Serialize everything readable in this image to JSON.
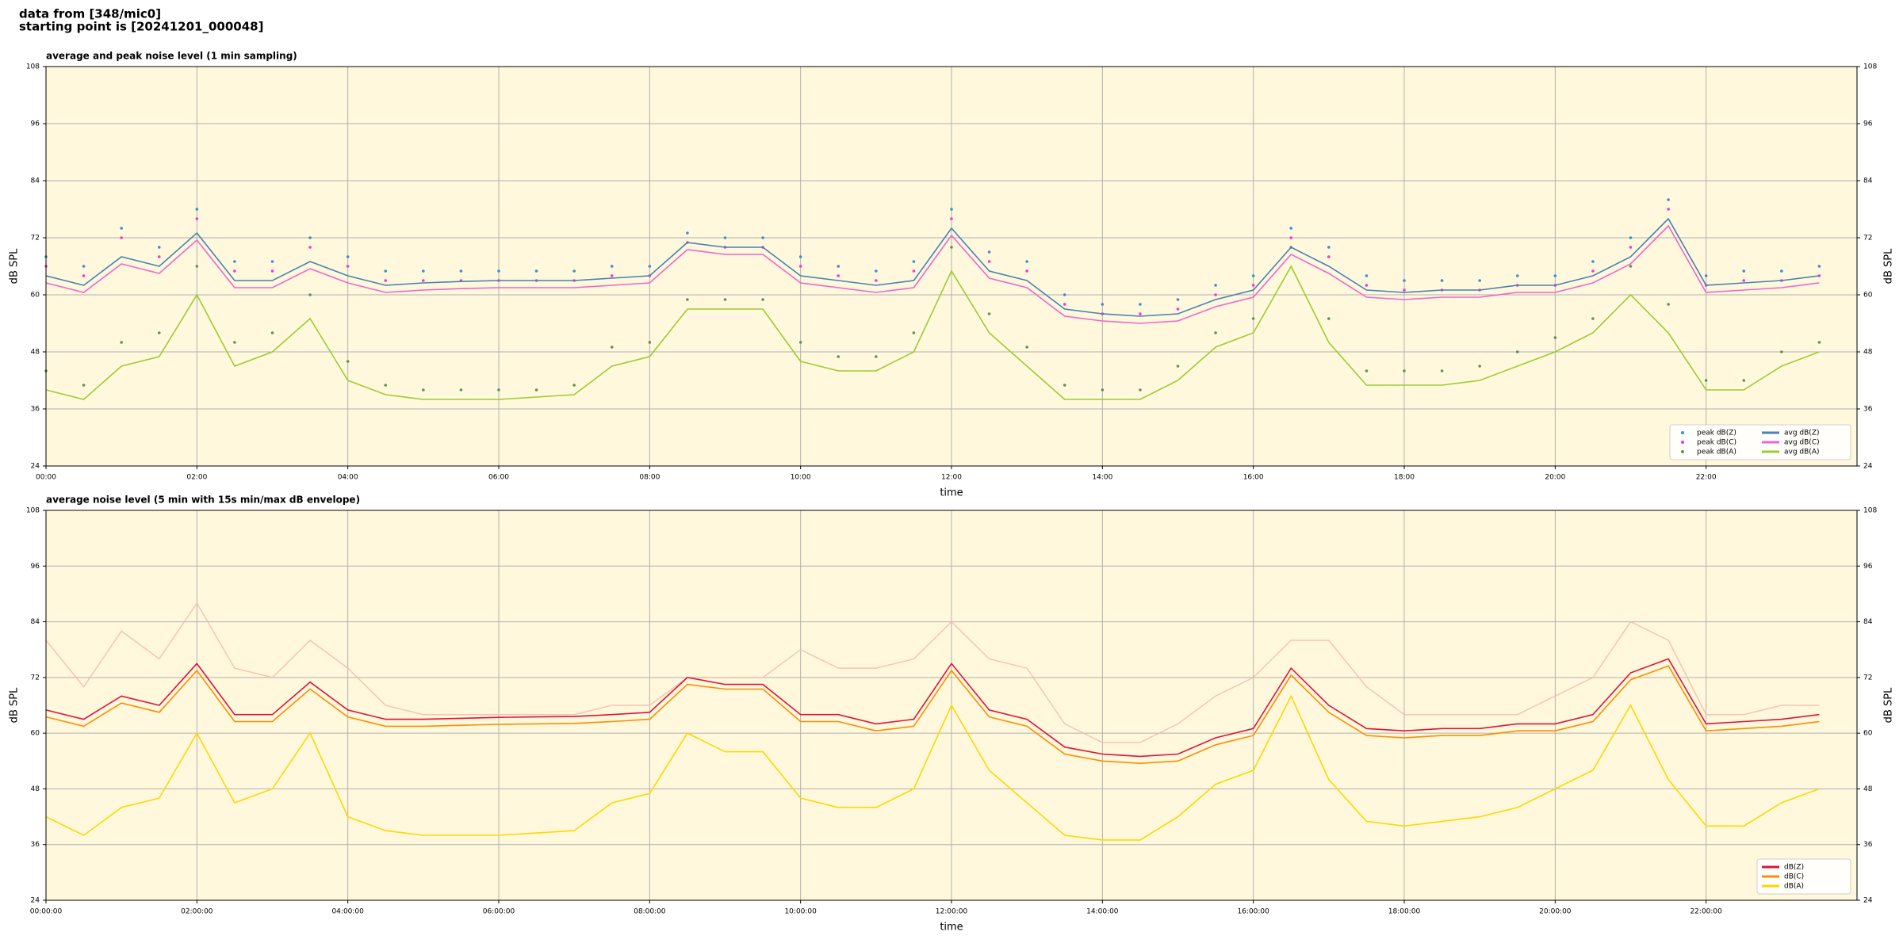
{
  "title": [
    "data from [348/mic0]",
    "starting point is [20241201_000048]"
  ],
  "chart_data": [
    {
      "type": "line",
      "title": "average and peak noise level (1 min sampling)",
      "xlabel": "time",
      "ylabel": "dB SPL",
      "xlim": [
        0,
        24
      ],
      "ylim": [
        24,
        108
      ],
      "yticks": [
        24,
        36,
        48,
        60,
        72,
        84,
        96,
        108
      ],
      "xticks": [
        {
          "value": 0,
          "label": "00:00"
        },
        {
          "value": 2,
          "label": "02:00"
        },
        {
          "value": 4,
          "label": "04:00"
        },
        {
          "value": 6,
          "label": "06:00"
        },
        {
          "value": 8,
          "label": "08:00"
        },
        {
          "value": 10,
          "label": "10:00"
        },
        {
          "value": 12,
          "label": "12:00"
        },
        {
          "value": 14,
          "label": "14:00"
        },
        {
          "value": 16,
          "label": "16:00"
        },
        {
          "value": 18,
          "label": "18:00"
        },
        {
          "value": 20,
          "label": "20:00"
        },
        {
          "value": 22,
          "label": "22:00"
        }
      ],
      "grid": true,
      "legend": "lower right",
      "background": "#fff8dc",
      "x": [
        0,
        0.5,
        1,
        1.5,
        2,
        2.5,
        3,
        3.5,
        4,
        4.5,
        5,
        5.5,
        6,
        6.5,
        7,
        7.5,
        8,
        8.5,
        9,
        9.5,
        10,
        10.5,
        11,
        11.5,
        12,
        12.5,
        13,
        13.5,
        14,
        14.5,
        15,
        15.5,
        16,
        16.5,
        17,
        17.5,
        18,
        18.5,
        19,
        19.5,
        20,
        20.5,
        21,
        21.5,
        22,
        22.5,
        23,
        23.5
      ],
      "series": [
        {
          "name": "peak dB(Z)",
          "style": "points",
          "color": "#3a8fd0",
          "values": [
            68,
            66,
            74,
            70,
            78,
            67,
            67,
            72,
            68,
            65,
            65,
            65,
            65,
            65,
            65,
            66,
            66,
            73,
            72,
            72,
            68,
            66,
            65,
            67,
            78,
            69,
            67,
            60,
            58,
            58,
            59,
            62,
            64,
            74,
            70,
            64,
            63,
            63,
            63,
            64,
            64,
            67,
            72,
            80,
            64,
            65,
            65,
            66
          ]
        },
        {
          "name": "peak dB(C)",
          "style": "points",
          "color": "#ff33cc",
          "values": [
            66,
            64,
            72,
            68,
            76,
            65,
            65,
            70,
            66,
            63,
            63,
            63,
            63,
            63,
            63,
            64,
            64,
            71,
            70,
            70,
            66,
            64,
            63,
            65,
            76,
            67,
            65,
            58,
            56,
            56,
            57,
            60,
            62,
            72,
            68,
            62,
            61,
            61,
            61,
            62,
            62,
            65,
            70,
            78,
            62,
            63,
            63,
            64
          ]
        },
        {
          "name": "peak dB(A)",
          "style": "points",
          "color": "#559955",
          "values": [
            44,
            41,
            50,
            52,
            66,
            50,
            52,
            60,
            46,
            41,
            40,
            40,
            40,
            40,
            41,
            49,
            50,
            59,
            59,
            59,
            50,
            47,
            47,
            52,
            70,
            56,
            49,
            41,
            40,
            40,
            45,
            52,
            55,
            70,
            55,
            44,
            44,
            44,
            45,
            48,
            51,
            55,
            66,
            58,
            42,
            42,
            48,
            50
          ]
        },
        {
          "name": "avg dB(Z)",
          "style": "line",
          "color": "#4682b4",
          "values": [
            64,
            62,
            68,
            66,
            73,
            63,
            63,
            67,
            64,
            62,
            62.5,
            62.8,
            63,
            63,
            63,
            63.5,
            64,
            71,
            70,
            70,
            64,
            63,
            62,
            63,
            74,
            65,
            63,
            57,
            56,
            55.5,
            56,
            59,
            61,
            70,
            66,
            61,
            60.5,
            61,
            61,
            62,
            62,
            64,
            68,
            76,
            62,
            62.5,
            63,
            64
          ]
        },
        {
          "name": "avg dB(C)",
          "style": "line",
          "color": "#ee66cc",
          "values": [
            62.5,
            60.5,
            66.5,
            64.5,
            71.5,
            61.5,
            61.5,
            65.5,
            62.5,
            60.5,
            61,
            61.3,
            61.5,
            61.5,
            61.5,
            62,
            62.5,
            69.5,
            68.5,
            68.5,
            62.5,
            61.5,
            60.5,
            61.5,
            72.5,
            63.5,
            61.5,
            55.5,
            54.5,
            54,
            54.5,
            57.5,
            59.5,
            68.5,
            64.5,
            59.5,
            59,
            59.5,
            59.5,
            60.5,
            60.5,
            62.5,
            66.5,
            74.5,
            60.5,
            61,
            61.5,
            62.5
          ]
        },
        {
          "name": "avg dB(A)",
          "style": "line",
          "color": "#9acd32",
          "values": [
            40,
            38,
            45,
            47,
            60,
            45,
            48,
            55,
            42,
            39,
            38,
            38,
            38,
            38.5,
            39,
            45,
            47,
            57,
            57,
            57,
            46,
            44,
            44,
            48,
            65,
            52,
            45,
            38,
            38,
            38,
            42,
            49,
            52,
            66,
            50,
            41,
            41,
            41,
            42,
            45,
            48,
            52,
            60,
            52,
            40,
            40,
            45,
            48
          ]
        }
      ]
    },
    {
      "type": "line",
      "title": "average noise level (5 min with 15s min/max dB envelope)",
      "xlabel": "time",
      "ylabel": "dB SPL",
      "xlim": [
        0,
        24
      ],
      "ylim": [
        24,
        108
      ],
      "yticks": [
        24,
        36,
        48,
        60,
        72,
        84,
        96,
        108
      ],
      "xticks": [
        {
          "value": 0,
          "label": "00:00:00"
        },
        {
          "value": 2,
          "label": "02:00:00"
        },
        {
          "value": 4,
          "label": "04:00:00"
        },
        {
          "value": 6,
          "label": "06:00:00"
        },
        {
          "value": 8,
          "label": "08:00:00"
        },
        {
          "value": 10,
          "label": "10:00:00"
        },
        {
          "value": 12,
          "label": "12:00:00"
        },
        {
          "value": 14,
          "label": "14:00:00"
        },
        {
          "value": 16,
          "label": "16:00:00"
        },
        {
          "value": 18,
          "label": "18:00:00"
        },
        {
          "value": 20,
          "label": "20:00:00"
        },
        {
          "value": 22,
          "label": "22:00:00"
        }
      ],
      "grid": true,
      "legend": "lower right",
      "background": "#fff8dc",
      "x": [
        0,
        0.5,
        1,
        1.5,
        2,
        2.5,
        3,
        3.5,
        4,
        4.5,
        5,
        5.5,
        6,
        6.5,
        7,
        7.5,
        8,
        8.5,
        9,
        9.5,
        10,
        10.5,
        11,
        11.5,
        12,
        12.5,
        13,
        13.5,
        14,
        14.5,
        15,
        15.5,
        16,
        16.5,
        17,
        17.5,
        18,
        18.5,
        19,
        19.5,
        20,
        20.5,
        21,
        21.5,
        22,
        22.5,
        23,
        23.5
      ],
      "envelope": {
        "color": "#f4b8a8",
        "values": [
          80,
          70,
          82,
          76,
          88,
          74,
          72,
          80,
          74,
          66,
          64,
          64,
          64,
          64,
          64,
          66,
          66,
          72,
          72,
          72,
          78,
          74,
          74,
          76,
          84,
          76,
          74,
          62,
          58,
          58,
          62,
          68,
          72,
          80,
          80,
          70,
          64,
          64,
          64,
          64,
          68,
          72,
          84,
          80,
          64,
          64,
          66,
          66
        ]
      },
      "series": [
        {
          "name": "dB(Z)",
          "color": "#dc143c",
          "values": [
            65,
            63,
            68,
            66,
            75,
            64,
            64,
            71,
            65,
            63,
            63,
            63.2,
            63.4,
            63.5,
            63.6,
            64,
            64.5,
            72,
            70.5,
            70.5,
            64,
            64,
            62,
            63,
            75,
            65,
            63,
            57,
            55.5,
            55,
            55.5,
            59,
            61,
            74,
            66,
            61,
            60.5,
            61,
            61,
            62,
            62,
            64,
            73,
            76,
            62,
            62.5,
            63,
            64
          ]
        },
        {
          "name": "dB(C)",
          "color": "#ff8c00",
          "values": [
            63.5,
            61.5,
            66.5,
            64.5,
            73.5,
            62.5,
            62.5,
            69.5,
            63.5,
            61.5,
            61.5,
            61.7,
            61.9,
            62,
            62.1,
            62.5,
            63,
            70.5,
            69.5,
            69.5,
            62.5,
            62.5,
            60.5,
            61.5,
            73.5,
            63.5,
            61.5,
            55.5,
            54,
            53.5,
            54,
            57.5,
            59.5,
            72.5,
            64.5,
            59.5,
            59,
            59.5,
            59.5,
            60.5,
            60.5,
            62.5,
            71.5,
            74.5,
            60.5,
            61,
            61.5,
            62.5
          ]
        },
        {
          "name": "dB(A)",
          "color": "#ffd700",
          "values": [
            42,
            38,
            44,
            46,
            60,
            45,
            48,
            60,
            42,
            39,
            38,
            38,
            38,
            38.5,
            39,
            45,
            47,
            60,
            56,
            56,
            46,
            44,
            44,
            48,
            66,
            52,
            45,
            38,
            37,
            37,
            42,
            49,
            52,
            68,
            50,
            41,
            40,
            41,
            42,
            44,
            48,
            52,
            66,
            50,
            40,
            40,
            45,
            48
          ]
        }
      ]
    }
  ]
}
